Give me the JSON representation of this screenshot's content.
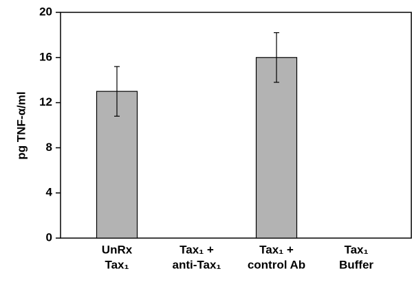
{
  "chart_data": {
    "type": "bar",
    "ylabel": "pg TNF-α/ml",
    "categories": [
      [
        "UnRx",
        "Tax₁"
      ],
      [
        "Tax₁ +",
        "anti-Tax₁"
      ],
      [
        "Tax₁ +",
        "control Ab"
      ],
      [
        "Tax₁",
        "Buffer"
      ]
    ],
    "values": [
      13,
      0,
      16,
      0
    ],
    "errors": [
      2.2,
      0,
      2.2,
      0
    ],
    "color": "#b3b3b3",
    "ylim": [
      0,
      20
    ],
    "yticks": [
      0,
      4,
      8,
      12,
      16,
      20
    ]
  }
}
